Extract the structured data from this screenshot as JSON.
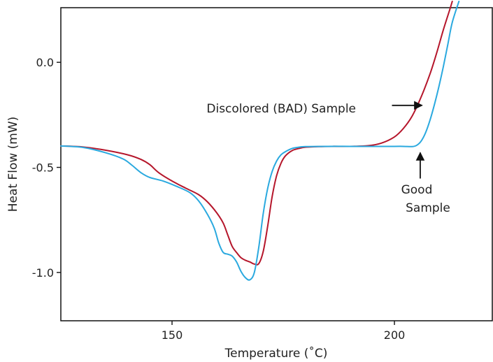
{
  "chart_data": {
    "type": "line",
    "xlabel": "Temperature (˚C)",
    "ylabel": "Heat Flow (mW)",
    "xlim": [
      125,
      222
    ],
    "ylim": [
      -1.23,
      0.26
    ],
    "x_ticks": [
      150,
      200
    ],
    "x_tick_labels": [
      "150",
      "200"
    ],
    "y_ticks": [
      0.0,
      -0.5,
      -1.0
    ],
    "y_tick_labels": [
      "0.0",
      "-0.5",
      "-1.0"
    ],
    "grid": false,
    "legend": "none",
    "series": [
      {
        "color": "#b5162b",
        "x": [
          125,
          130,
          135,
          140,
          143,
          145,
          147,
          150,
          153,
          156,
          158,
          160,
          161.5,
          162.5,
          163.5,
          164.5,
          165.5,
          166.5,
          167.5,
          168.5,
          169.5,
          170.5,
          171.5,
          172.5,
          173.5,
          174.5,
          175.5,
          177,
          178.5,
          180,
          183,
          186,
          190,
          194,
          197,
          200,
          202,
          204,
          206,
          208,
          209.5,
          211,
          212.5,
          213
        ],
        "y": [
          -0.398,
          -0.403,
          -0.418,
          -0.44,
          -0.462,
          -0.487,
          -0.525,
          -0.565,
          -0.598,
          -0.63,
          -0.665,
          -0.715,
          -0.765,
          -0.82,
          -0.875,
          -0.905,
          -0.93,
          -0.942,
          -0.95,
          -0.96,
          -0.958,
          -0.9,
          -0.78,
          -0.64,
          -0.54,
          -0.48,
          -0.445,
          -0.42,
          -0.41,
          -0.404,
          -0.401,
          -0.4,
          -0.4,
          -0.397,
          -0.385,
          -0.355,
          -0.315,
          -0.255,
          -0.165,
          -0.055,
          0.045,
          0.155,
          0.255,
          0.29
        ]
      },
      {
        "color": "#2aa9df",
        "x": [
          125,
          130,
          135,
          139,
          141,
          143,
          145,
          148,
          151,
          154,
          156,
          158,
          159.5,
          160.5,
          161.5,
          162.5,
          163.5,
          164.5,
          165.5,
          166.5,
          167.5,
          168.5,
          169.5,
          170.5,
          171.5,
          172.5,
          173.5,
          174.5,
          175.5,
          177,
          178.5,
          180,
          185,
          190,
          195,
          200,
          202,
          204,
          205,
          206,
          207,
          208,
          209,
          210,
          211,
          212,
          213,
          214.5
        ],
        "y": [
          -0.398,
          -0.405,
          -0.43,
          -0.46,
          -0.49,
          -0.525,
          -0.548,
          -0.565,
          -0.59,
          -0.62,
          -0.66,
          -0.725,
          -0.79,
          -0.86,
          -0.905,
          -0.913,
          -0.922,
          -0.95,
          -0.995,
          -1.025,
          -1.035,
          -1.0,
          -0.88,
          -0.72,
          -0.6,
          -0.52,
          -0.47,
          -0.44,
          -0.425,
          -0.41,
          -0.404,
          -0.401,
          -0.4,
          -0.4,
          -0.4,
          -0.4,
          -0.4,
          -0.401,
          -0.395,
          -0.375,
          -0.335,
          -0.275,
          -0.2,
          -0.115,
          -0.02,
          0.085,
          0.19,
          0.29
        ]
      }
    ],
    "annotations": [
      {
        "text": "Discolored (BAD) Sample",
        "arrow": "right",
        "arrow_tip": [
          206.2,
          -0.205
        ]
      },
      {
        "text": "Good",
        "text2": "Sample",
        "arrow": "up",
        "arrow_tip": [
          205.8,
          -0.43
        ]
      }
    ]
  }
}
